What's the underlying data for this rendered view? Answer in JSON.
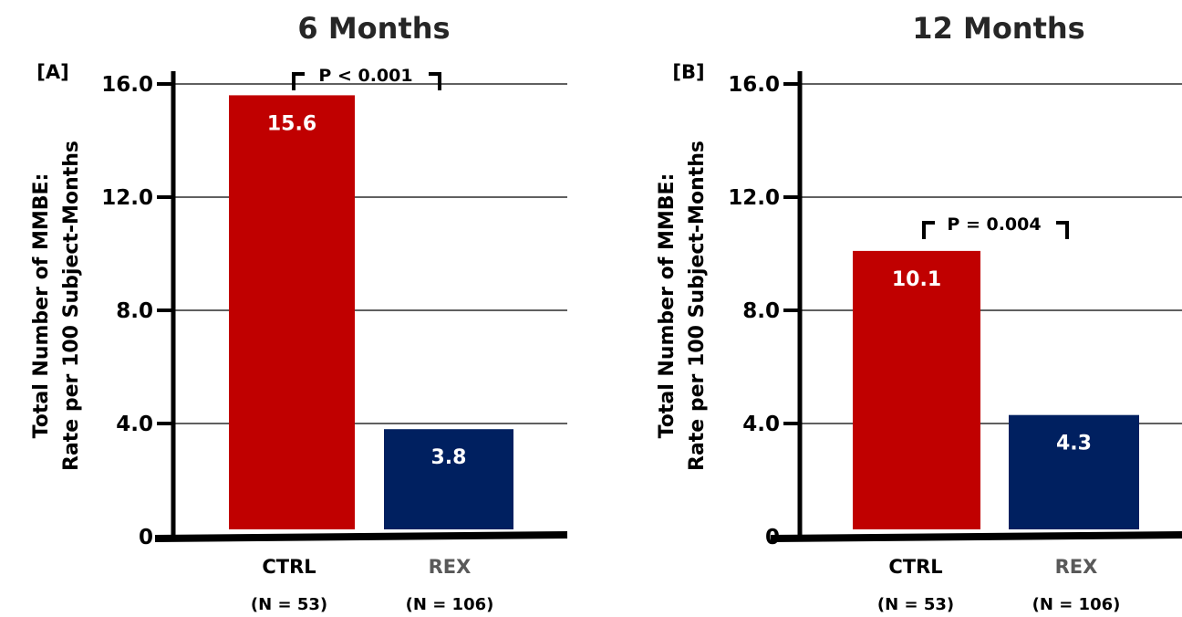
{
  "ylabel_line1": "Total Number of MMBE:",
  "ylabel_line2": "Rate per 100 Subject-Months",
  "colors": {
    "ctrl": "#c00000",
    "rex": "#002060",
    "rex_label": "#595959"
  },
  "chart_data": [
    {
      "type": "bar",
      "title": "6 Months",
      "panel": "[A]",
      "categories": [
        "CTRL",
        "REX"
      ],
      "category_counts": [
        "(N = 53)",
        "(N = 106)"
      ],
      "values": [
        15.6,
        3.8
      ],
      "data_labels": [
        "15.6",
        "3.8"
      ],
      "ylim": [
        0,
        16
      ],
      "yticks": [
        0,
        4,
        8,
        12,
        16
      ],
      "ytick_labels": [
        "0",
        "4.0",
        "8.0",
        "12.0",
        "16.0"
      ],
      "grid": true,
      "p_value": "P < 0.001"
    },
    {
      "type": "bar",
      "title": "12 Months",
      "panel": "[B]",
      "categories": [
        "CTRL",
        "REX"
      ],
      "category_counts": [
        "(N = 53)",
        "(N = 106)"
      ],
      "values": [
        10.1,
        4.3
      ],
      "data_labels": [
        "10.1",
        "4.3"
      ],
      "ylim": [
        0,
        16
      ],
      "yticks": [
        0,
        4,
        8,
        12,
        16
      ],
      "ytick_labels": [
        "0",
        "4.0",
        "8.0",
        "12.0",
        "16.0"
      ],
      "grid": true,
      "p_value": "P = 0.004"
    }
  ]
}
